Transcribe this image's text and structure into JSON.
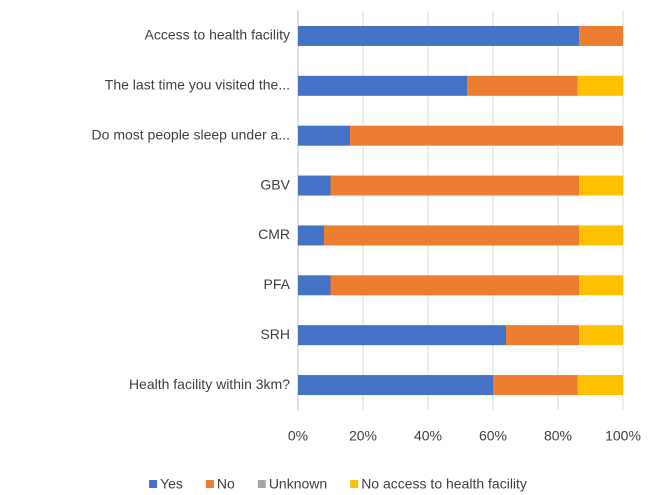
{
  "chart_data": {
    "type": "stacked-bar-horizontal",
    "categories": [
      "Access to health facility",
      "The last time you visited the...",
      "Do most people sleep under a...",
      "GBV",
      "CMR",
      "PFA",
      "SRH",
      "Health facility within 3km?"
    ],
    "series": [
      {
        "name": "Yes",
        "color": "#4472c4",
        "values": [
          86.5,
          52,
          16,
          10,
          8,
          10,
          64,
          60
        ]
      },
      {
        "name": "No",
        "color": "#ed7d31",
        "values": [
          13.5,
          34,
          84,
          76.5,
          78.5,
          76.5,
          22.5,
          26
        ]
      },
      {
        "name": "Unknown",
        "color": "#a5a5a5",
        "values": [
          0,
          0,
          0,
          0,
          0,
          0,
          0,
          0
        ]
      },
      {
        "name": "No access to health facility",
        "color": "#ffc000",
        "values": [
          0,
          14,
          0,
          13.5,
          13.5,
          13.5,
          13.5,
          14
        ]
      }
    ],
    "xlim": [
      0,
      100
    ],
    "xticks": [
      {
        "value": 0,
        "label": "0%"
      },
      {
        "value": 20,
        "label": "20%"
      },
      {
        "value": 40,
        "label": "40%"
      },
      {
        "value": 60,
        "label": "60%"
      },
      {
        "value": 80,
        "label": "80%"
      },
      {
        "value": 100,
        "label": "100%"
      }
    ],
    "grid": true,
    "legend": "bottom"
  }
}
